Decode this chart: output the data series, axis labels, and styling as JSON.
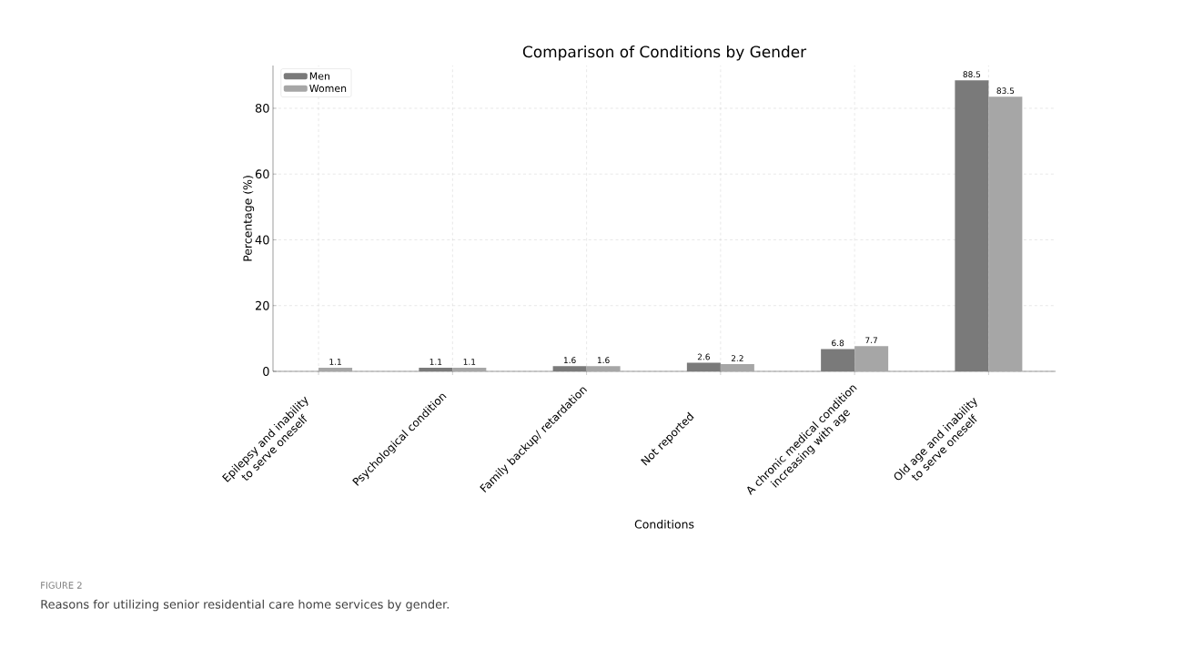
{
  "chart_data": {
    "type": "bar",
    "title": "Comparison of Conditions by Gender",
    "xlabel": "Conditions",
    "ylabel": "Percentage (%)",
    "categories": [
      "Epilepsy and inability to serve oneself",
      "Psychological condition",
      "Family backup/ retardation",
      "Not reported",
      "A chronic medical condition increasing with age",
      "Old age and inability to serve oneself"
    ],
    "series": [
      {
        "name": "Men",
        "color": "#7a7a7a",
        "values": [
          null,
          1.1,
          1.6,
          2.6,
          6.8,
          88.5
        ]
      },
      {
        "name": "Women",
        "color": "#a6a6a6",
        "values": [
          1.1,
          1.1,
          1.6,
          2.2,
          7.7,
          83.5
        ]
      }
    ],
    "ylim": [
      0,
      93
    ],
    "yticks": [
      0,
      20,
      40,
      60,
      80
    ],
    "grid": true,
    "legend": "top left",
    "data_labels": true,
    "annotations": [
      "FIGURE 2",
      "Reasons for utilizing senior residential care home services by gender."
    ]
  }
}
